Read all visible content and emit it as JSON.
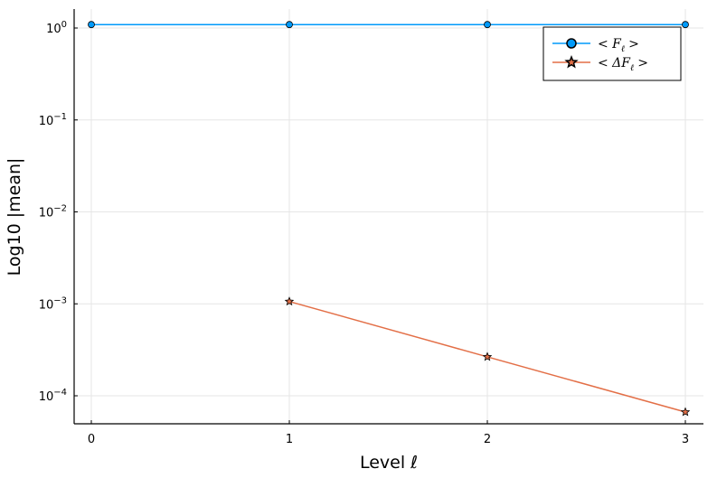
{
  "chart_data": {
    "type": "line",
    "xlabel": "Level ℓ",
    "ylabel": "Log10 |mean|",
    "x": [
      0,
      1,
      2,
      3
    ],
    "xlim": [
      -0.1,
      3.0
    ],
    "ylim": [
      5e-05,
      1.6
    ],
    "yscale": "log10",
    "grid": true,
    "legend_position": "top-right",
    "x_ticks": [
      "0",
      "1",
      "2",
      "3"
    ],
    "y_ticks": [
      {
        "value": 1,
        "base": "10",
        "exp": "0"
      },
      {
        "value": 0.1,
        "base": "10",
        "exp": "−1"
      },
      {
        "value": 0.01,
        "base": "10",
        "exp": "−2"
      },
      {
        "value": 0.001,
        "base": "10",
        "exp": "−3"
      },
      {
        "value": 0.0001,
        "base": "10",
        "exp": "−4"
      }
    ],
    "series": [
      {
        "name": "< F_ℓ >",
        "legend_main": "< F",
        "legend_sub": "ℓ",
        "legend_tail": ">",
        "color": "#009AFA",
        "marker": "circle",
        "x": [
          0,
          1,
          2,
          3
        ],
        "values": [
          1.09,
          1.09,
          1.09,
          1.09
        ]
      },
      {
        "name": "< ΔF_ℓ >",
        "legend_main": "< ΔF",
        "legend_sub": "ℓ",
        "legend_tail": ">",
        "color": "#E36F47",
        "marker": "star",
        "x": [
          1,
          2,
          3
        ],
        "values": [
          0.00106,
          0.000265,
          6.65e-05
        ]
      }
    ]
  }
}
